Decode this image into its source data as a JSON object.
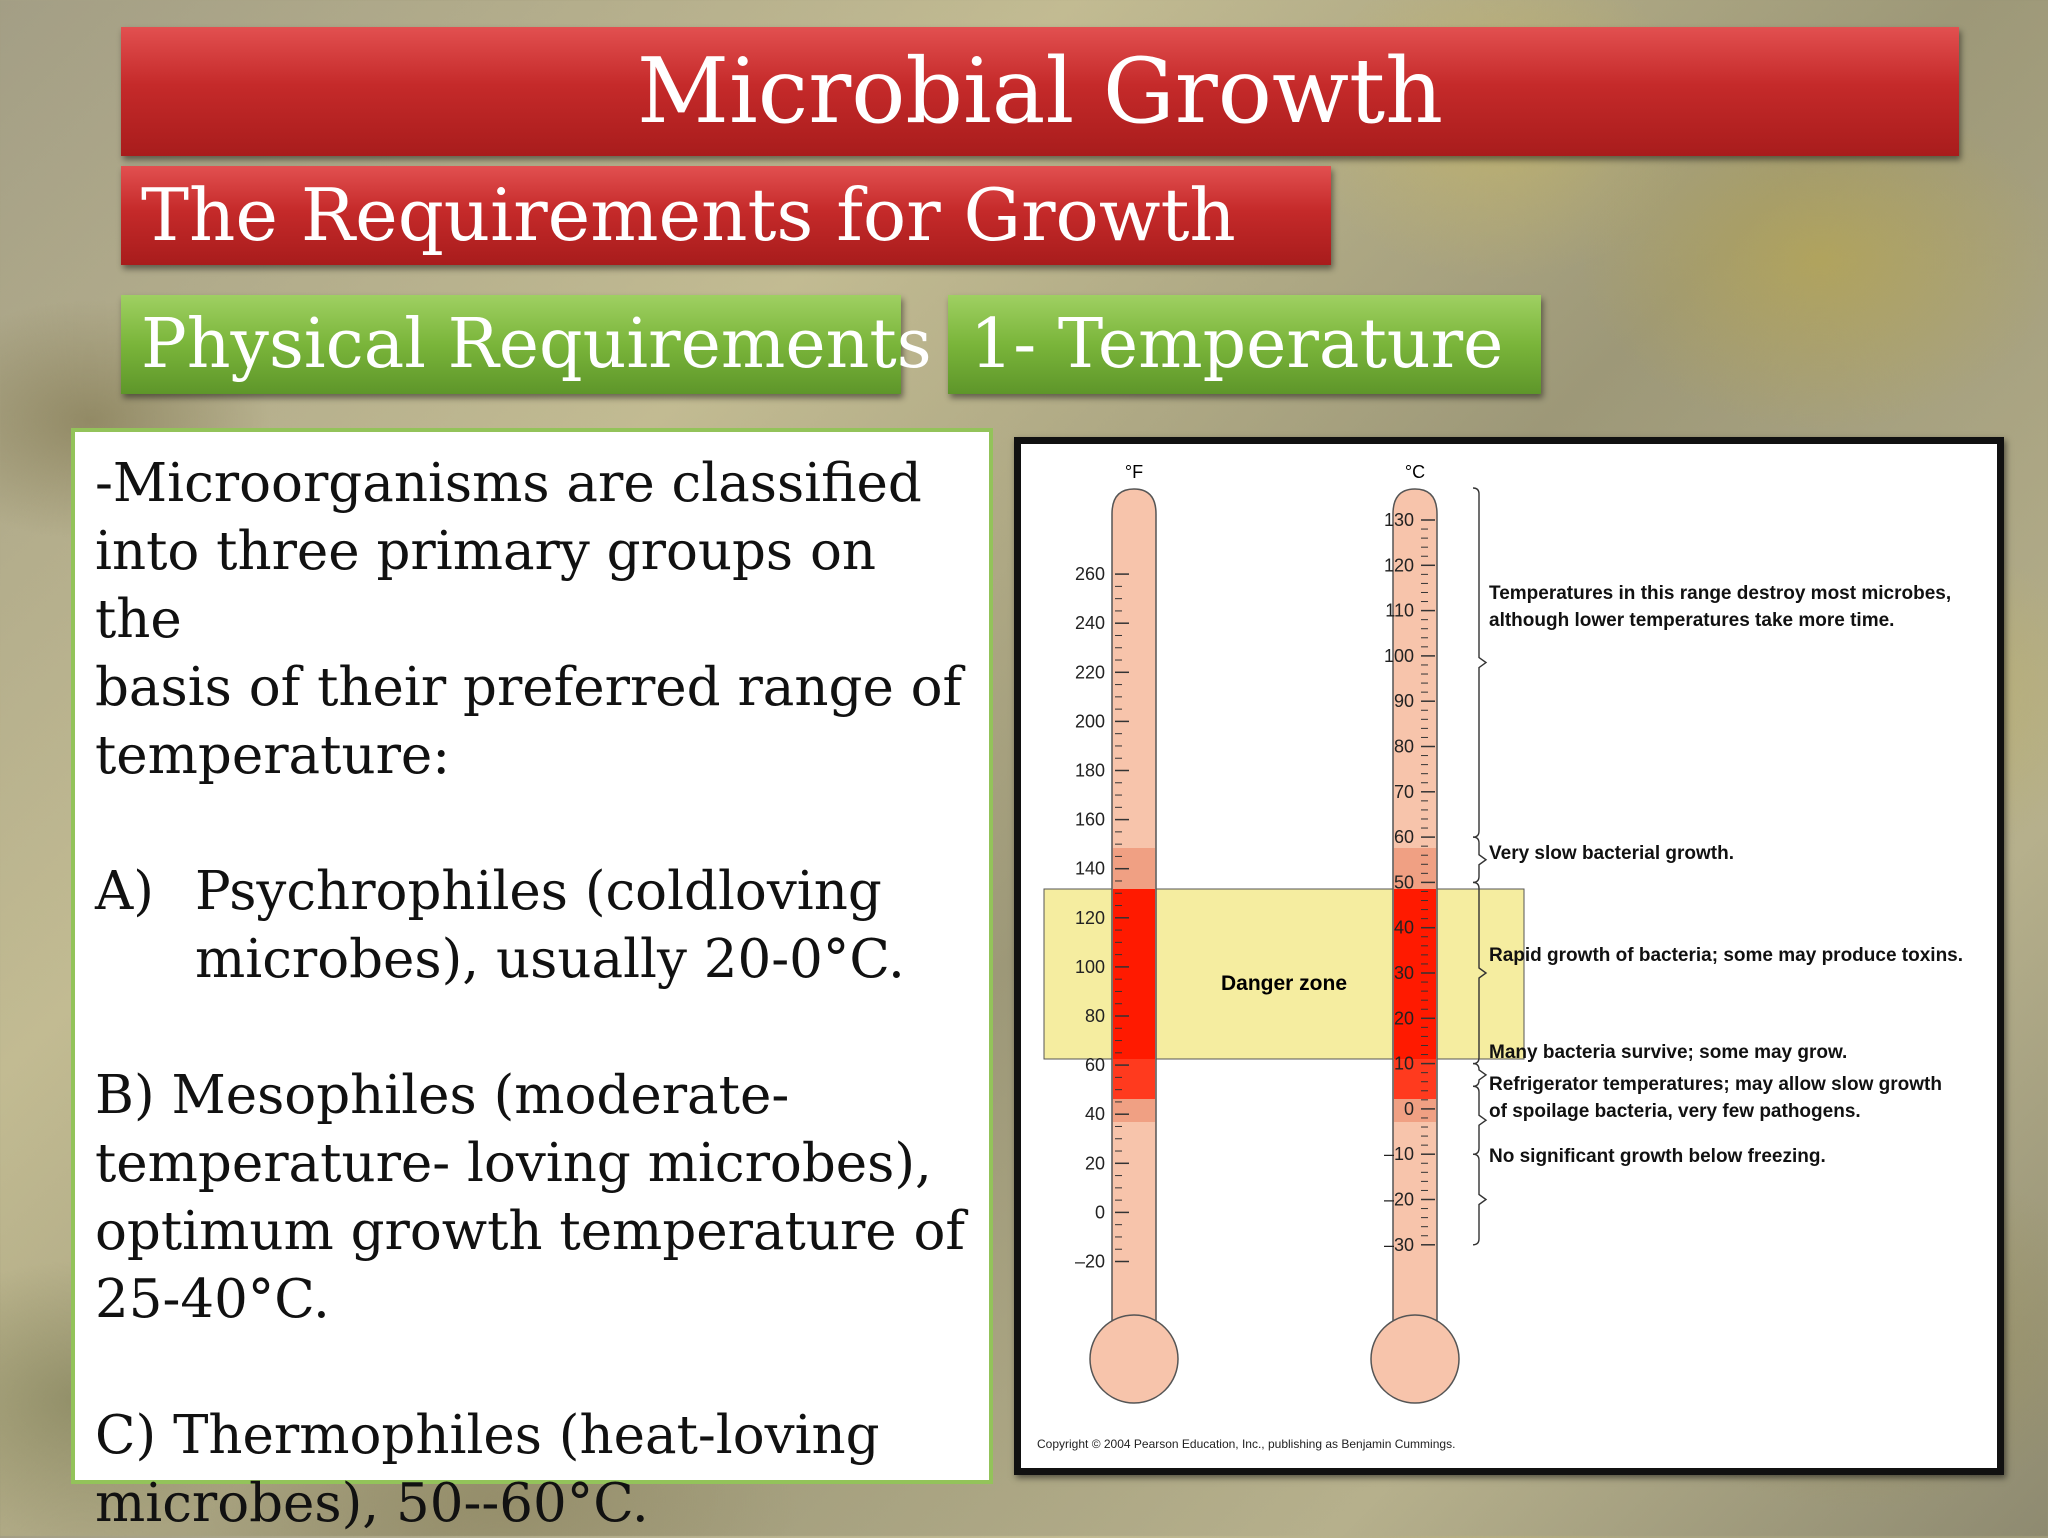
{
  "slide": {
    "title": "Microbial Growth",
    "subtitle": "The Requirements for Growth",
    "section": "Physical Requirements",
    "topic": "1- Temperature"
  },
  "body": {
    "intro_lines": [
      "-Microorganisms are classified",
      "into three primary groups on the",
      "basis of their preferred range of",
      "temperature:"
    ],
    "item_a": {
      "label": "A)",
      "lines": [
        "Psychrophiles (coldloving",
        "microbes), usually 20-0°C."
      ]
    },
    "item_b": {
      "lines": [
        "B) Mesophiles (moderate-",
        "temperature- loving microbes),",
        "optimum growth temperature of",
        "25-40°C."
      ]
    },
    "item_c": {
      "lines": [
        "C) Thermophiles (heat-loving",
        "microbes), 50--60°C."
      ]
    }
  },
  "figure": {
    "fahrenheit_unit": "°F",
    "celsius_unit": "°C",
    "fahrenheit_ticks": [
      "260",
      "240",
      "220",
      "200",
      "180",
      "160",
      "140",
      "120",
      "100",
      "80",
      "60",
      "40",
      "20",
      "0",
      "–20"
    ],
    "celsius_ticks": [
      "130",
      "120",
      "110",
      "100",
      "90",
      "80",
      "70",
      "60",
      "50",
      "40",
      "30",
      "20",
      "10",
      "0",
      "–10",
      "–20",
      "–30"
    ],
    "danger_zone_label": "Danger zone",
    "annotations": [
      {
        "lines": [
          "Temperatures in this range destroy most microbes,",
          "although lower temperatures take more time."
        ]
      },
      {
        "lines": [
          "Very slow bacterial growth."
        ]
      },
      {
        "lines": [
          "Rapid growth of bacteria; some may produce toxins."
        ]
      },
      {
        "lines": [
          "Many bacteria survive; some may grow."
        ]
      },
      {
        "lines": [
          "Refrigerator temperatures; may allow slow growth",
          "of spoilage bacteria, very few pathogens."
        ]
      },
      {
        "lines": [
          "No significant growth below freezing."
        ]
      }
    ],
    "copyright": "Copyright © 2004 Pearson Education, Inc., publishing as Benjamin Cummings.",
    "colors": {
      "tube": "#f7c4ab",
      "tube_outline": "#555555",
      "warm_band": "#f0a083",
      "hot_band": "#ff3a1e",
      "danger_core": "#ff1a00",
      "danger_zone": "#f5eda0"
    }
  }
}
